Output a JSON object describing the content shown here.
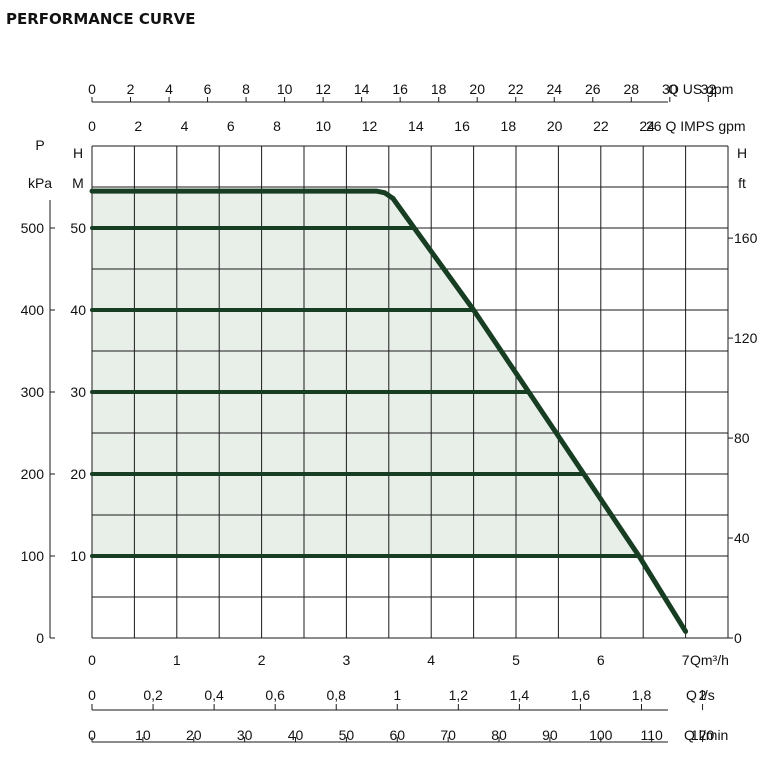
{
  "title": "PERFORMANCE CURVE",
  "colors": {
    "curve": "#173d22",
    "fill": "#e8efe9",
    "grid": "#1a1a1a",
    "text": "#111111"
  },
  "chart_data": {
    "type": "line",
    "title": "PERFORMANCE CURVE",
    "x_primary": {
      "label": "Qm³/h",
      "range": [
        0,
        7.5
      ],
      "ticks": [
        "0",
        "1",
        "2",
        "3",
        "4",
        "5",
        "6",
        "7"
      ]
    },
    "y_left_pressure": {
      "label_top": "P",
      "label_unit": "kPa",
      "range": [
        0,
        600
      ],
      "ticks": [
        "0",
        "100",
        "200",
        "300",
        "400",
        "500"
      ]
    },
    "y_left_head": {
      "label_top": "H",
      "label_unit": "M",
      "range": [
        0,
        60
      ],
      "ticks": [
        "10",
        "20",
        "30",
        "40",
        "50"
      ]
    },
    "y_right_head_ft": {
      "label_top": "H",
      "label_unit": "ft",
      "ticks": [
        "0",
        "40",
        "80",
        "120",
        "160"
      ]
    },
    "x_top_us_gpm": {
      "label": "Q US gpm",
      "ticks": [
        "0",
        "2",
        "4",
        "6",
        "8",
        "10",
        "12",
        "14",
        "16",
        "18",
        "20",
        "22",
        "24",
        "26",
        "28",
        "30",
        "32"
      ]
    },
    "x_top_imps_gpm": {
      "label": "26 Q IMPS gpm",
      "ticks": [
        "0",
        "2",
        "4",
        "6",
        "8",
        "10",
        "12",
        "14",
        "16",
        "18",
        "20",
        "22",
        "24"
      ]
    },
    "x_bottom_ls": {
      "label": "Q l/s",
      "ticks": [
        "0",
        "0,2",
        "0,4",
        "0,6",
        "0,8",
        "1",
        "1,2",
        "1,4",
        "1,6",
        "1,8",
        "2"
      ]
    },
    "x_bottom_lmin": {
      "label": "Q l/min",
      "ticks": [
        "0",
        "10",
        "20",
        "30",
        "40",
        "50",
        "60",
        "70",
        "80",
        "90",
        "100",
        "110",
        "120"
      ]
    },
    "series": [
      {
        "x": [
          0,
          3.35,
          3.45,
          3.55,
          3.8,
          4.5,
          5.15,
          5.8,
          6.45,
          7.0
        ],
        "y": [
          54.5,
          54.5,
          54.3,
          53.6,
          50,
          40,
          30,
          20,
          10,
          0.8
        ]
      }
    ],
    "operating_lines": [
      {
        "head_m": 50,
        "x_end": 3.8
      },
      {
        "head_m": 40,
        "x_end": 4.5
      },
      {
        "head_m": 30,
        "x_end": 5.15
      },
      {
        "head_m": 20,
        "x_end": 5.8
      },
      {
        "head_m": 10,
        "x_end": 6.45
      }
    ],
    "grid": true
  }
}
